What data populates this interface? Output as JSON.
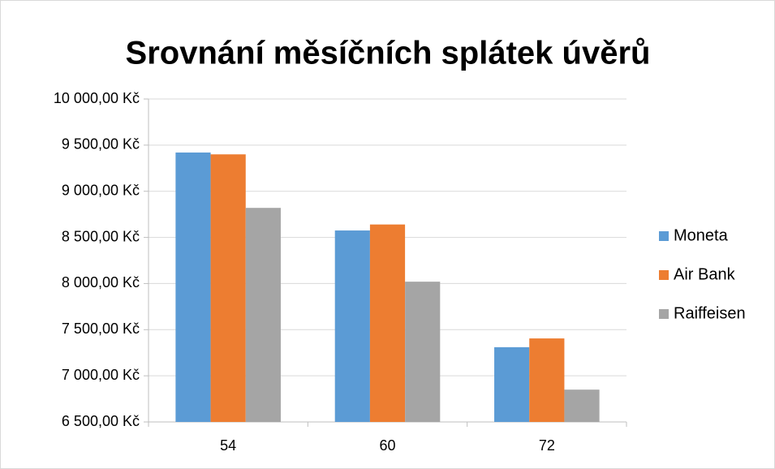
{
  "chart_data": {
    "type": "bar",
    "title": "Srovnání měsíčních splátek úvěrů",
    "categories": [
      "54",
      "60",
      "72"
    ],
    "series": [
      {
        "name": "Moneta",
        "color": "#5b9bd5",
        "values": [
          9420,
          8575,
          7310
        ]
      },
      {
        "name": "Air Bank",
        "color": "#ed7d31",
        "values": [
          9400,
          8640,
          7405
        ]
      },
      {
        "name": "Raiffeisen",
        "color": "#a5a5a5",
        "values": [
          8820,
          8020,
          6850
        ]
      }
    ],
    "ylim": [
      6500,
      10000
    ],
    "yticks": [
      {
        "value": 6500,
        "label": "6 500,00 Kč"
      },
      {
        "value": 7000,
        "label": "7 000,00 Kč"
      },
      {
        "value": 7500,
        "label": "7 500,00 Kč"
      },
      {
        "value": 8000,
        "label": "8 000,00 Kč"
      },
      {
        "value": 8500,
        "label": "8 500,00 Kč"
      },
      {
        "value": 9000,
        "label": "9 000,00 Kč"
      },
      {
        "value": 9500,
        "label": "9 500,00 Kč"
      },
      {
        "value": 10000,
        "label": "10 000,00 Kč"
      }
    ],
    "grid": true,
    "legend": "right"
  }
}
